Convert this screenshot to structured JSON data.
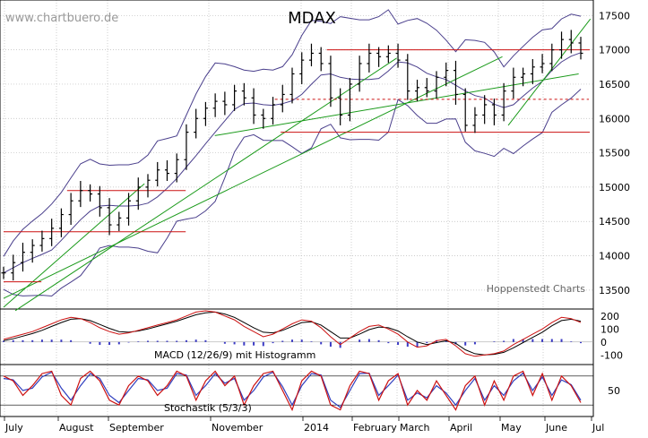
{
  "chart_data": {
    "type": "ohlc",
    "title": "MDAX",
    "watermark": "www.chartbuero.de",
    "source_label": "Hoppenstedt Charts",
    "x_labels": [
      "July",
      "August",
      "September",
      "November",
      "2014",
      "February",
      "March",
      "April",
      "May",
      "June",
      "Jul"
    ],
    "price_panel": {
      "ylim": [
        13250,
        17700
      ],
      "y_ticks": [
        13500,
        14000,
        14500,
        15000,
        15500,
        16000,
        16500,
        17000,
        17500
      ],
      "closes": [
        13750,
        13900,
        14050,
        14150,
        14250,
        14400,
        14600,
        14800,
        14950,
        14900,
        14700,
        14450,
        14550,
        14800,
        15000,
        15100,
        15250,
        15200,
        15400,
        15800,
        16000,
        16150,
        16250,
        16200,
        16400,
        16300,
        16050,
        16000,
        16200,
        16350,
        16650,
        16850,
        16950,
        16800,
        16300,
        16050,
        16500,
        16800,
        16950,
        16900,
        16950,
        16850,
        16400,
        16450,
        16400,
        16600,
        16700,
        16350,
        15900,
        16050,
        16200,
        16050,
        16400,
        16600,
        16650,
        16750,
        16800,
        17000,
        17150,
        17100,
        16950
      ],
      "resistance_lines": [
        {
          "label": "17000",
          "value": 17000
        },
        {
          "label": "15800",
          "value": 15800
        },
        {
          "label": "14950",
          "value": 14950
        },
        {
          "label": "14350",
          "value": 14350
        },
        {
          "label": "13620",
          "value": 13620
        }
      ],
      "dashed_line": 16280
    },
    "macd_panel": {
      "label": "MACD (12/26/9) mit Histogramm",
      "y_ticks": [
        200,
        100,
        0,
        -100
      ],
      "ylim": [
        -160,
        240
      ],
      "macd": [
        20,
        40,
        60,
        80,
        110,
        140,
        170,
        190,
        180,
        150,
        110,
        80,
        60,
        70,
        90,
        110,
        130,
        150,
        170,
        200,
        230,
        240,
        230,
        200,
        170,
        120,
        80,
        40,
        60,
        100,
        140,
        170,
        160,
        110,
        40,
        -20,
        30,
        80,
        120,
        130,
        100,
        60,
        0,
        -40,
        -30,
        10,
        20,
        -30,
        -90,
        -110,
        -100,
        -90,
        -70,
        -20,
        20,
        60,
        100,
        150,
        190,
        180,
        150
      ],
      "signal": [
        10,
        25,
        45,
        65,
        90,
        120,
        150,
        175,
        180,
        165,
        135,
        105,
        80,
        75,
        85,
        100,
        120,
        140,
        160,
        185,
        210,
        225,
        230,
        215,
        190,
        150,
        110,
        75,
        70,
        90,
        120,
        150,
        155,
        130,
        80,
        30,
        30,
        60,
        95,
        115,
        110,
        85,
        40,
        0,
        -20,
        -5,
        10,
        -10,
        -60,
        -90,
        -100,
        -95,
        -80,
        -45,
        -5,
        35,
        75,
        125,
        165,
        175,
        160
      ]
    },
    "stoch_panel": {
      "label": "Stochastik (5/3/3)",
      "y_ticks": [
        50
      ],
      "ylim": [
        0,
        100
      ],
      "k": [
        80,
        70,
        40,
        60,
        85,
        90,
        40,
        20,
        75,
        90,
        70,
        30,
        20,
        60,
        80,
        70,
        40,
        60,
        90,
        80,
        30,
        70,
        90,
        60,
        80,
        20,
        60,
        85,
        90,
        50,
        10,
        70,
        90,
        80,
        20,
        10,
        60,
        90,
        85,
        30,
        70,
        85,
        20,
        50,
        30,
        70,
        40,
        10,
        60,
        80,
        20,
        70,
        30,
        80,
        90,
        40,
        85,
        30,
        80,
        60,
        25
      ],
      "d": [
        75,
        72,
        50,
        55,
        78,
        88,
        55,
        30,
        60,
        85,
        75,
        40,
        25,
        50,
        75,
        72,
        50,
        55,
        85,
        82,
        40,
        60,
        85,
        65,
        75,
        30,
        50,
        78,
        88,
        58,
        20,
        60,
        85,
        82,
        30,
        15,
        50,
        85,
        86,
        40,
        60,
        82,
        30,
        45,
        35,
        60,
        45,
        20,
        50,
        75,
        30,
        60,
        40,
        70,
        86,
        50,
        78,
        40,
        72,
        62,
        30
      ]
    },
    "colors": {
      "price_bars": "#000000",
      "bollinger": "#4a3f8c",
      "trend_lines": "#1a9a1a",
      "resistance": "#cc1111",
      "macd_line": "#cc1111",
      "signal_line": "#000000",
      "histogram": "#3b3bc4",
      "stoch_k": "#cc1111",
      "stoch_d": "#2f3fbf"
    }
  }
}
